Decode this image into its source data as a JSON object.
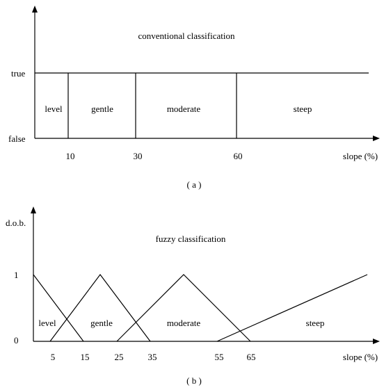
{
  "panel_a": {
    "title": "conventional classification",
    "y_true_label": "true",
    "y_false_label": "false",
    "x_axis_label": "slope (%)",
    "caption": "( a )",
    "ticks": [
      "10",
      "30",
      "60"
    ],
    "classes": [
      "level",
      "gentle",
      "moderate",
      "steep"
    ]
  },
  "panel_b": {
    "title": "fuzzy classification",
    "y_axis_label": "d.o.b.",
    "y_one_label": "1",
    "y_zero_label": "0",
    "x_axis_label": "slope (%)",
    "caption": "( b )",
    "ticks": [
      "5",
      "15",
      "25",
      "35",
      "55",
      "65"
    ],
    "classes": [
      "level",
      "gentle",
      "moderate",
      "steep"
    ]
  },
  "chart_data": [
    {
      "type": "line",
      "title": "conventional classification",
      "xlabel": "slope (%)",
      "y_levels": [
        "false",
        "true"
      ],
      "boundaries": [
        10,
        30,
        60
      ],
      "classes": [
        {
          "name": "level",
          "from": 0,
          "to": 10
        },
        {
          "name": "gentle",
          "from": 10,
          "to": 30
        },
        {
          "name": "moderate",
          "from": 30,
          "to": 60
        },
        {
          "name": "steep",
          "from": 60,
          "to": null
        }
      ]
    },
    {
      "type": "line",
      "title": "fuzzy classification",
      "xlabel": "slope (%)",
      "ylabel": "d.o.b.",
      "ylim": [
        0,
        1
      ],
      "series": [
        {
          "name": "level",
          "x": [
            0,
            15
          ],
          "y": [
            1,
            0
          ]
        },
        {
          "name": "gentle",
          "x": [
            5,
            20,
            35
          ],
          "y": [
            0,
            1,
            0
          ]
        },
        {
          "name": "moderate",
          "x": [
            25,
            45,
            65
          ],
          "y": [
            0,
            1,
            0
          ]
        },
        {
          "name": "steep",
          "x": [
            55,
            100
          ],
          "y": [
            0,
            1
          ]
        }
      ]
    }
  ]
}
